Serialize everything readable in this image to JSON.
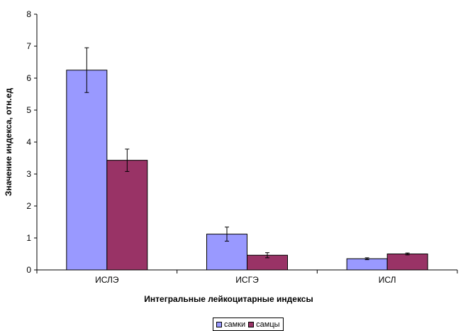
{
  "chart_data": {
    "type": "bar",
    "categories": [
      "ИСЛЭ",
      "ИСГЭ",
      "ИСЛ"
    ],
    "series": [
      {
        "name": "самки",
        "values": [
          6.25,
          1.12,
          0.35
        ],
        "errors": [
          0.7,
          0.22,
          0.03
        ],
        "color": "#9999FF"
      },
      {
        "name": "самцы",
        "values": [
          3.43,
          0.46,
          0.5
        ],
        "errors": [
          0.35,
          0.08,
          0.03
        ],
        "color": "#993366"
      }
    ],
    "xlabel": "Интегральные лейкоцитарные индексы",
    "ylabel": "Значение индекса, отн.ед",
    "ylim": [
      0,
      8
    ],
    "yticks": [
      "0",
      "1",
      "2",
      "3",
      "4",
      "5",
      "6",
      "7",
      "8"
    ],
    "grid": false,
    "legend_position": "bottom"
  }
}
